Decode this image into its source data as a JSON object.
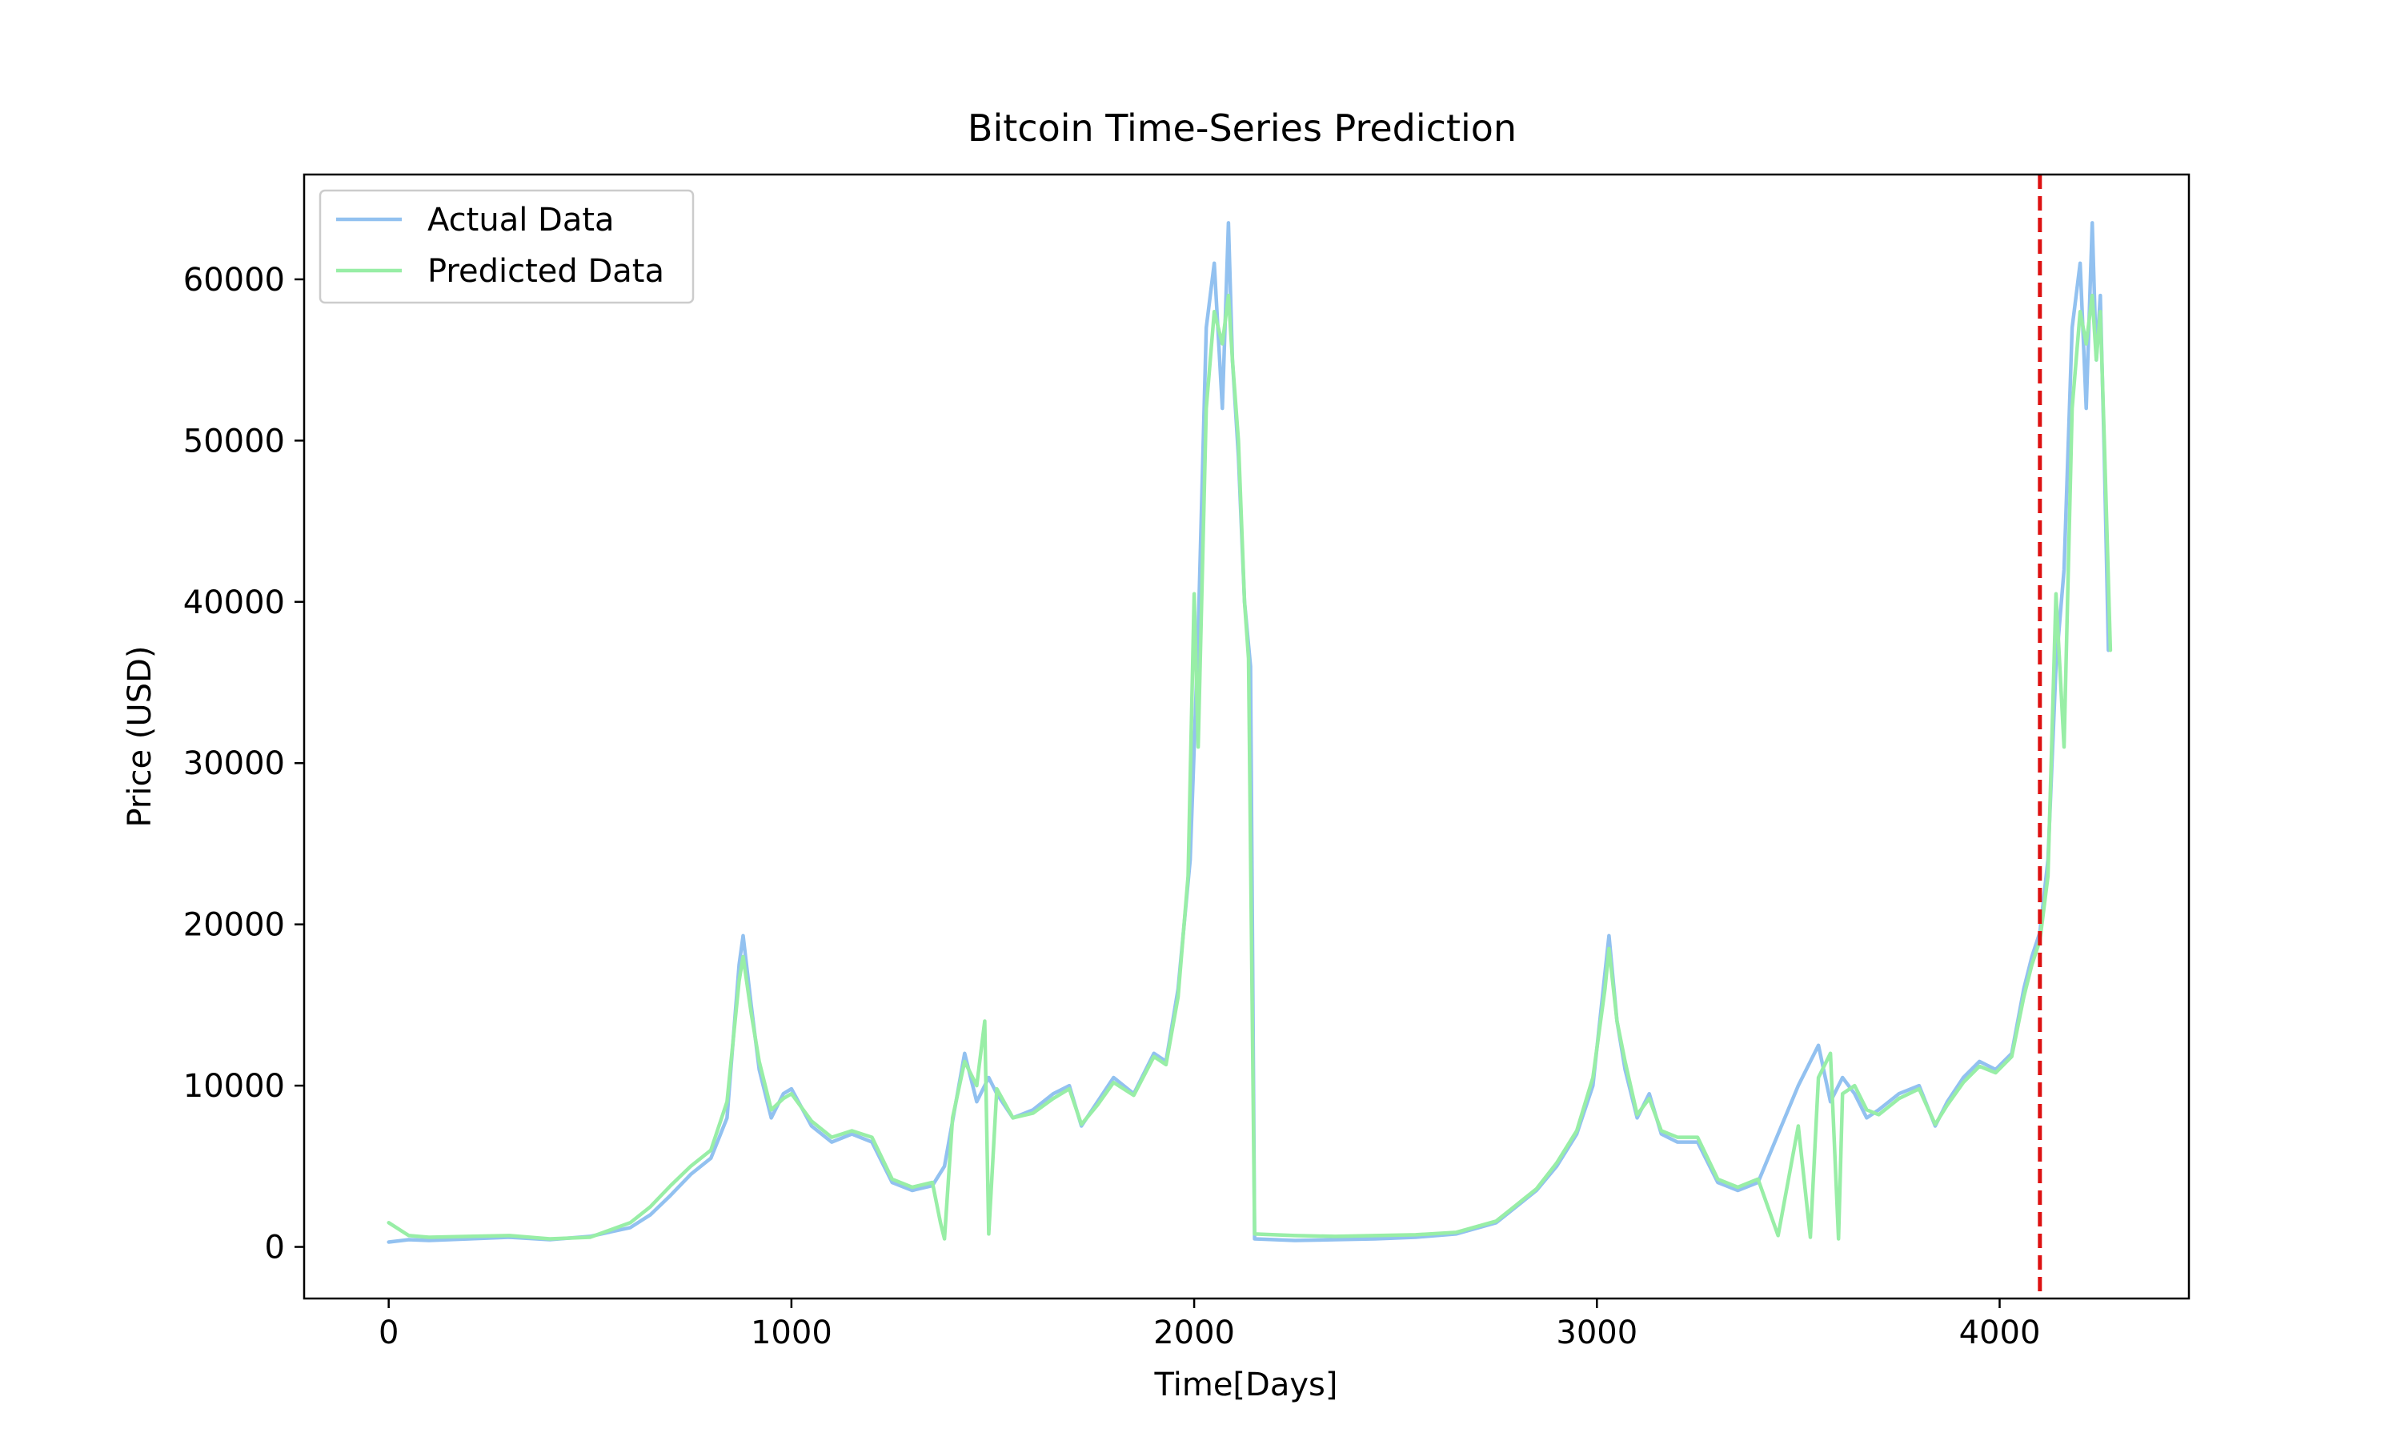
{
  "chart_data": {
    "type": "line",
    "title": "Bitcoin Time-Series Prediction",
    "xlabel": "Time[Days]",
    "ylabel": "Price (USD)",
    "xlim": [
      -210,
      4470
    ],
    "ylim": [
      -3200,
      66500
    ],
    "xticks": [
      0,
      1000,
      2000,
      3000,
      4000
    ],
    "yticks": [
      0,
      10000,
      20000,
      30000,
      40000,
      50000,
      60000
    ],
    "grid": false,
    "legend_position": "top-left",
    "split_marker": {
      "x": 4100,
      "color": "#dd1111",
      "style": "dashed"
    },
    "series": [
      {
        "name": "Actual Data",
        "color": "#92c1f0",
        "x": [
          0,
          50,
          100,
          200,
          300,
          400,
          500,
          600,
          650,
          700,
          750,
          800,
          840,
          870,
          880,
          900,
          920,
          950,
          980,
          1000,
          1050,
          1100,
          1150,
          1200,
          1250,
          1300,
          1350,
          1380,
          1400,
          1430,
          1460,
          1490,
          1510,
          1550,
          1600,
          1650,
          1690,
          1720,
          1760,
          1800,
          1850,
          1900,
          1930,
          1960,
          1990,
          2010,
          2030,
          2050,
          2070,
          2085,
          2095,
          2110,
          2125,
          2140,
          2150,
          2250,
          2350,
          2450,
          2550,
          2650,
          2750,
          2800,
          2850,
          2900,
          2950,
          2990,
          3020,
          3030,
          3050,
          3070,
          3100,
          3130,
          3160,
          3200,
          3250,
          3300,
          3350,
          3400,
          3450,
          3500,
          3550,
          3580,
          3610,
          3640,
          3670,
          3700,
          3750,
          3800,
          3840,
          3870,
          3910,
          3950,
          3990,
          4030,
          4060,
          4080,
          4100,
          4120,
          4140,
          4160,
          4180,
          4200,
          4215,
          4230,
          4240,
          4250,
          4260,
          4270
        ],
        "y": [
          300,
          450,
          400,
          500,
          600,
          450,
          650,
          1200,
          2000,
          3200,
          4500,
          5500,
          8000,
          17500,
          19300,
          15000,
          11000,
          8000,
          9500,
          9800,
          7500,
          6500,
          7000,
          6500,
          4000,
          3500,
          3800,
          5000,
          7800,
          12000,
          9000,
          10500,
          9500,
          8000,
          8500,
          9500,
          10000,
          7500,
          9000,
          10500,
          9500,
          12000,
          11500,
          16000,
          24000,
          38000,
          57000,
          61000,
          52000,
          63500,
          55000,
          49000,
          40000,
          36000,
          500,
          400,
          450,
          500,
          600,
          800,
          1500,
          2500,
          3500,
          5000,
          7000,
          10000,
          17000,
          19300,
          14000,
          11000,
          8000,
          9500,
          7000,
          6500,
          6500,
          4000,
          3500,
          4000,
          7000,
          10000,
          12500,
          9000,
          10500,
          9500,
          8000,
          8500,
          9500,
          10000,
          7500,
          9000,
          10500,
          11500,
          11000,
          12000,
          16000,
          18000,
          19500,
          24000,
          36000,
          42000,
          57000,
          61000,
          52000,
          63500,
          55000,
          59000,
          49000,
          37000
        ]
      },
      {
        "name": "Predicted Data",
        "color": "#98eea6",
        "x": [
          0,
          50,
          100,
          200,
          300,
          400,
          500,
          600,
          650,
          700,
          750,
          800,
          840,
          870,
          880,
          900,
          920,
          950,
          980,
          1000,
          1050,
          1100,
          1150,
          1200,
          1250,
          1300,
          1350,
          1370,
          1380,
          1400,
          1430,
          1460,
          1480,
          1490,
          1510,
          1550,
          1600,
          1650,
          1690,
          1720,
          1760,
          1800,
          1850,
          1900,
          1930,
          1960,
          1985,
          2000,
          2010,
          2030,
          2050,
          2070,
          2085,
          2095,
          2110,
          2125,
          2135,
          2150,
          2250,
          2350,
          2450,
          2550,
          2650,
          2750,
          2800,
          2850,
          2900,
          2950,
          2990,
          3020,
          3030,
          3050,
          3070,
          3100,
          3130,
          3160,
          3200,
          3250,
          3300,
          3350,
          3400,
          3450,
          3500,
          3530,
          3550,
          3580,
          3600,
          3610,
          3640,
          3670,
          3700,
          3750,
          3800,
          3840,
          3870,
          3910,
          3950,
          3990,
          4030,
          4060,
          4080,
          4100,
          4120,
          4140,
          4160,
          4180,
          4200,
          4215,
          4230,
          4240,
          4250,
          4260,
          4275
        ],
        "y": [
          1500,
          700,
          600,
          650,
          700,
          500,
          600,
          1500,
          2500,
          3800,
          5000,
          6000,
          9000,
          16500,
          18000,
          14500,
          11500,
          8500,
          9200,
          9500,
          7800,
          6800,
          7200,
          6800,
          4200,
          3700,
          4000,
          1500,
          500,
          8000,
          11500,
          10000,
          14000,
          800,
          9800,
          8000,
          8300,
          9200,
          9800,
          7600,
          8800,
          10200,
          9400,
          11800,
          11300,
          15500,
          23000,
          40500,
          31000,
          52000,
          58000,
          56000,
          59000,
          55000,
          50000,
          40000,
          36500,
          800,
          700,
          650,
          700,
          750,
          900,
          1600,
          2600,
          3600,
          5200,
          7200,
          10500,
          16000,
          18500,
          14000,
          11500,
          8200,
          9200,
          7200,
          6800,
          6800,
          4200,
          3700,
          4200,
          700,
          7500,
          600,
          10500,
          12000,
          500,
          9500,
          10000,
          8500,
          8200,
          9200,
          9800,
          7600,
          8800,
          10200,
          11200,
          10800,
          11800,
          15500,
          17500,
          19000,
          23000,
          40500,
          31000,
          52000,
          58000,
          56000,
          59000,
          55000,
          58000,
          50000,
          37000
        ]
      }
    ]
  }
}
